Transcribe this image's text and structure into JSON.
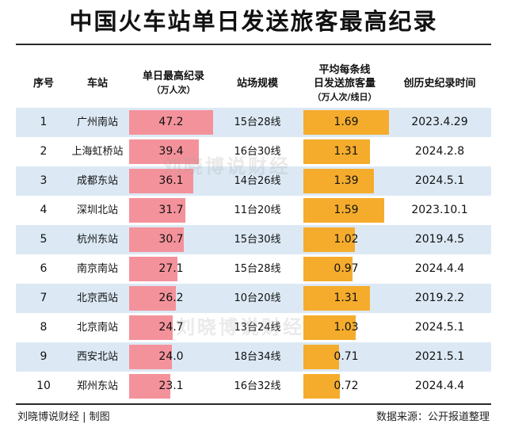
{
  "title": "中国火车站单日发送旅客最高纪录",
  "headers": {
    "rank": "序号",
    "station": "车站",
    "record_line1": "单日最高纪录",
    "record_line2": "（万人次）",
    "scale": "站场规模",
    "avg_line1": "平均每条线",
    "avg_line2": "日发送旅客量",
    "avg_line3": "（万人次/线日）",
    "date": "创历史纪录时间"
  },
  "watermark": "刘晓博说财经",
  "footer": {
    "left": "刘晓博说财经 | 制图",
    "right": "数据来源：公开报道整理"
  },
  "colors": {
    "record_bar": "#f4929b",
    "avg_bar": "#f5ac2c",
    "row_shade": "#dce9f5"
  },
  "chart_data": {
    "type": "table",
    "columns": [
      "序号",
      "车站",
      "单日最高纪录（万人次）",
      "站场规模",
      "平均每条线日发送旅客量（万人次/线日）",
      "创历史纪录时间"
    ],
    "record_max": 47.2,
    "avg_max": 1.69,
    "rows": [
      {
        "rank": "1",
        "station": "广州南站",
        "record": "47.2",
        "scale": "15台28线",
        "avg": "1.69",
        "date": "2023.4.29"
      },
      {
        "rank": "2",
        "station": "上海虹桥站",
        "record": "39.4",
        "scale": "16台30线",
        "avg": "1.31",
        "date": "2024.2.8"
      },
      {
        "rank": "3",
        "station": "成都东站",
        "record": "36.1",
        "scale": "14台26线",
        "avg": "1.39",
        "date": "2024.5.1"
      },
      {
        "rank": "4",
        "station": "深圳北站",
        "record": "31.7",
        "scale": "11台20线",
        "avg": "1.59",
        "date": "2023.10.1"
      },
      {
        "rank": "5",
        "station": "杭州东站",
        "record": "30.7",
        "scale": "15台30线",
        "avg": "1.02",
        "date": "2019.4.5"
      },
      {
        "rank": "6",
        "station": "南京南站",
        "record": "27.1",
        "scale": "15台28线",
        "avg": "0.97",
        "date": "2024.4.4"
      },
      {
        "rank": "7",
        "station": "北京西站",
        "record": "26.2",
        "scale": "10台20线",
        "avg": "1.31",
        "date": "2019.2.2"
      },
      {
        "rank": "8",
        "station": "北京南站",
        "record": "24.7",
        "scale": "13台24线",
        "avg": "1.03",
        "date": "2024.5.1"
      },
      {
        "rank": "9",
        "station": "西安北站",
        "record": "24.0",
        "scale": "18台34线",
        "avg": "0.71",
        "date": "2021.5.1"
      },
      {
        "rank": "10",
        "station": "郑州东站",
        "record": "23.1",
        "scale": "16台32线",
        "avg": "0.72",
        "date": "2024.4.4"
      }
    ]
  }
}
